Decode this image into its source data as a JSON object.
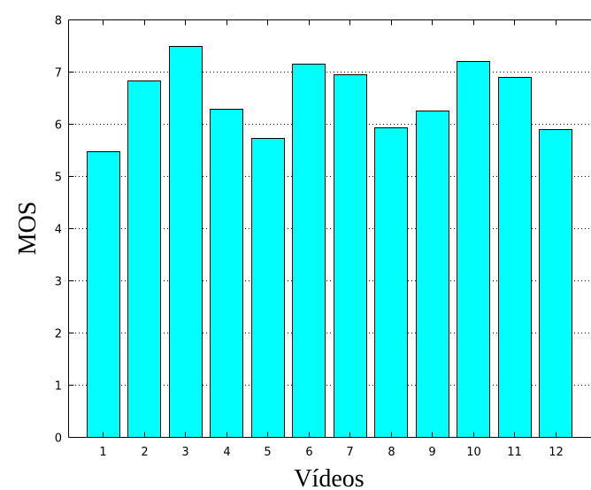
{
  "chart_data": {
    "type": "bar",
    "categories": [
      "1",
      "2",
      "3",
      "4",
      "5",
      "6",
      "7",
      "8",
      "9",
      "10",
      "11",
      "12"
    ],
    "values": [
      5.47,
      6.83,
      7.5,
      6.28,
      5.73,
      7.16,
      6.95,
      5.94,
      6.26,
      7.21,
      6.9,
      5.89
    ],
    "title": "",
    "xlabel": "Vídeos",
    "ylabel": "MOS",
    "ylim": [
      0,
      8
    ],
    "yticks": [
      "0",
      "1",
      "2",
      "3",
      "4",
      "5",
      "6",
      "7",
      "8"
    ],
    "grid": "horizontal dotted",
    "bar_color": "#00ffff",
    "edge_color": "#000000"
  }
}
